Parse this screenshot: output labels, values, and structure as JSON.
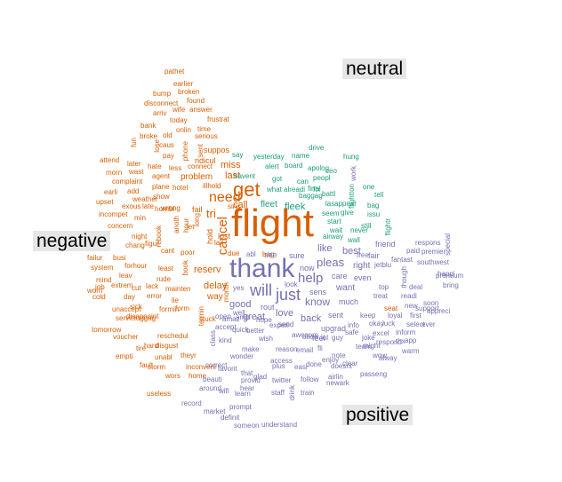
{
  "labels": {
    "neutral": "neutral",
    "negative": "negative",
    "positive": "positive"
  },
  "colors": {
    "negative": "#d95f02",
    "neutral": "#1b9e77",
    "positive": "#7570b3"
  },
  "words": [
    {
      "t": "flight",
      "g": "negative"
    },
    {
      "t": "thank",
      "g": "positive"
    },
    {
      "t": "get",
      "g": "negative"
    },
    {
      "t": "will",
      "g": "positive"
    },
    {
      "t": "just",
      "g": "positive"
    },
    {
      "t": "need",
      "g": "negative"
    },
    {
      "t": "help",
      "g": "positive"
    },
    {
      "t": "pleas",
      "g": "positive"
    },
    {
      "t": "cancel",
      "g": "negative"
    },
    {
      "t": "tri",
      "g": "negative"
    },
    {
      "t": "call",
      "g": "negative"
    },
    {
      "t": "fleet",
      "g": "neutral"
    },
    {
      "t": "fleek",
      "g": "neutral"
    },
    {
      "t": "miss",
      "g": "negative"
    },
    {
      "t": "last",
      "g": "negative"
    },
    {
      "t": "problem",
      "g": "negative"
    },
    {
      "t": "reserv",
      "g": "negative"
    },
    {
      "t": "delay",
      "g": "negative"
    },
    {
      "t": "good",
      "g": "positive"
    },
    {
      "t": "great",
      "g": "positive"
    },
    {
      "t": "love",
      "g": "positive"
    },
    {
      "t": "back",
      "g": "positive"
    },
    {
      "t": "know",
      "g": "positive"
    },
    {
      "t": "like",
      "g": "positive"
    },
    {
      "t": "best",
      "g": "positive"
    },
    {
      "t": "right",
      "g": "positive"
    },
    {
      "t": "want",
      "g": "positive"
    },
    {
      "t": "way",
      "g": "negative"
    },
    {
      "t": "fail",
      "g": "negative"
    },
    {
      "t": "lost",
      "g": "negative"
    },
    {
      "t": "hold",
      "g": "negative"
    },
    {
      "t": "sinc",
      "g": "negative"
    },
    {
      "t": "illhold",
      "g": "negative"
    },
    {
      "t": "suppos",
      "g": "negative"
    },
    {
      "t": "ridicul",
      "g": "negative"
    },
    {
      "t": "connect",
      "g": "negative"
    },
    {
      "t": "serious",
      "g": "negative"
    },
    {
      "t": "frustrat",
      "g": "negative"
    },
    {
      "t": "time",
      "g": "negative"
    },
    {
      "t": "onlin",
      "g": "negative"
    },
    {
      "t": "today",
      "g": "negative"
    },
    {
      "t": "answer",
      "g": "negative"
    },
    {
      "t": "wife",
      "g": "negative"
    },
    {
      "t": "arriv",
      "g": "negative"
    },
    {
      "t": "found",
      "g": "negative"
    },
    {
      "t": "disconnect",
      "g": "negative"
    },
    {
      "t": "broken",
      "g": "negative"
    },
    {
      "t": "bump",
      "g": "negative"
    },
    {
      "t": "earlier",
      "g": "negative"
    },
    {
      "t": "pathet",
      "g": "negative"
    },
    {
      "t": "bank",
      "g": "negative"
    },
    {
      "t": "old",
      "g": "negative"
    },
    {
      "t": "broke",
      "g": "negative"
    },
    {
      "t": "fun",
      "g": "negative"
    },
    {
      "t": "lose",
      "g": "negative"
    },
    {
      "t": "caus",
      "g": "negative"
    },
    {
      "t": "pay",
      "g": "negative"
    },
    {
      "t": "phone",
      "g": "negative"
    },
    {
      "t": "sent",
      "g": "negative"
    },
    {
      "t": "later",
      "g": "negative"
    },
    {
      "t": "hate",
      "g": "negative"
    },
    {
      "t": "less",
      "g": "negative"
    },
    {
      "t": "morn",
      "g": "negative"
    },
    {
      "t": "wast",
      "g": "negative"
    },
    {
      "t": "agent",
      "g": "negative"
    },
    {
      "t": "complaint",
      "g": "negative"
    },
    {
      "t": "plane",
      "g": "negative"
    },
    {
      "t": "hotel",
      "g": "negative"
    },
    {
      "t": "earli",
      "g": "negative"
    },
    {
      "t": "add",
      "g": "negative"
    },
    {
      "t": "show",
      "g": "negative"
    },
    {
      "t": "upset",
      "g": "negative"
    },
    {
      "t": "weather",
      "g": "negative"
    },
    {
      "t": "exous",
      "g": "negative"
    },
    {
      "t": "late",
      "g": "negative"
    },
    {
      "t": "wrong",
      "g": "negative"
    },
    {
      "t": "incompet",
      "g": "negative"
    },
    {
      "t": "min",
      "g": "negative"
    },
    {
      "t": "anoth",
      "g": "negative"
    },
    {
      "t": "hour",
      "g": "negative"
    },
    {
      "t": "let",
      "g": "negative"
    },
    {
      "t": "long",
      "g": "negative"
    },
    {
      "t": "concern",
      "g": "negative"
    },
    {
      "t": "night",
      "g": "negative"
    },
    {
      "t": "rebook",
      "g": "negative"
    },
    {
      "t": "chang",
      "g": "negative"
    },
    {
      "t": "cant",
      "g": "negative"
    },
    {
      "t": "poor",
      "g": "negative"
    },
    {
      "t": "lax",
      "g": "negative"
    },
    {
      "t": "due",
      "g": "negative"
    },
    {
      "t": "failur",
      "g": "negative"
    },
    {
      "t": "busi",
      "g": "negative"
    },
    {
      "t": "forhour",
      "g": "negative"
    },
    {
      "t": "figur",
      "g": "negative"
    },
    {
      "t": "least",
      "g": "negative"
    },
    {
      "t": "system",
      "g": "negative"
    },
    {
      "t": "leav",
      "g": "negative"
    },
    {
      "t": "rude",
      "g": "negative"
    },
    {
      "t": "mind",
      "g": "negative"
    },
    {
      "t": "cut",
      "g": "negative"
    },
    {
      "t": "lack",
      "g": "negative"
    },
    {
      "t": "job",
      "g": "negative"
    },
    {
      "t": "mainten",
      "g": "negative"
    },
    {
      "t": "worri",
      "g": "negative"
    },
    {
      "t": "cold",
      "g": "negative"
    },
    {
      "t": "extrem",
      "g": "negative"
    },
    {
      "t": "day",
      "g": "negative"
    },
    {
      "t": "error",
      "g": "negative"
    },
    {
      "t": "lie",
      "g": "negative"
    },
    {
      "t": "sick",
      "g": "negative"
    },
    {
      "t": "unaccept",
      "g": "negative"
    },
    {
      "t": "disappoint",
      "g": "negative"
    },
    {
      "t": "form",
      "g": "negative"
    },
    {
      "t": "servic",
      "g": "negative"
    },
    {
      "t": "luggag",
      "g": "negative"
    },
    {
      "t": "formin",
      "g": "negative"
    },
    {
      "t": "tomorrow",
      "g": "negative"
    },
    {
      "t": "reschedul",
      "g": "negative"
    },
    {
      "t": "voucher",
      "g": "negative"
    },
    {
      "t": "tire",
      "g": "negative"
    },
    {
      "t": "hard",
      "g": "negative"
    },
    {
      "t": "disgust",
      "g": "negative"
    },
    {
      "t": "empti",
      "g": "negative"
    },
    {
      "t": "unabl",
      "g": "negative"
    },
    {
      "t": "theyr",
      "g": "negative"
    },
    {
      "t": "fault",
      "g": "negative"
    },
    {
      "t": "storm",
      "g": "negative"
    },
    {
      "t": "inconveni",
      "g": "negative"
    },
    {
      "t": "home",
      "g": "negative"
    },
    {
      "t": "wors",
      "g": "negative"
    },
    {
      "t": "useless",
      "g": "negative"
    },
    {
      "t": "stuck",
      "g": "negative"
    },
    {
      "t": "bag",
      "g": "negative"
    },
    {
      "t": "seat",
      "g": "negative"
    },
    {
      "t": "attend",
      "g": "negative"
    },
    {
      "t": "horribl",
      "g": "negative"
    },
    {
      "t": "book",
      "g": "negative"
    },
    {
      "t": "termin",
      "g": "negative"
    },
    {
      "t": "month",
      "g": "negative"
    },
    {
      "t": "drive",
      "g": "neutral"
    },
    {
      "t": "hung",
      "g": "neutral"
    },
    {
      "t": "say",
      "g": "neutral"
    },
    {
      "t": "yesterday",
      "g": "neutral"
    },
    {
      "t": "name",
      "g": "neutral"
    },
    {
      "t": "alert",
      "g": "neutral"
    },
    {
      "t": "board",
      "g": "neutral"
    },
    {
      "t": "apolog",
      "g": "neutral"
    },
    {
      "t": "ceo",
      "g": "neutral"
    },
    {
      "t": "havent",
      "g": "neutral"
    },
    {
      "t": "got",
      "g": "neutral"
    },
    {
      "t": "can",
      "g": "neutral"
    },
    {
      "t": "peopl",
      "g": "neutral"
    },
    {
      "t": "final",
      "g": "neutral"
    },
    {
      "t": "what",
      "g": "neutral"
    },
    {
      "t": "alreadi",
      "g": "neutral"
    },
    {
      "t": "fix",
      "g": "neutral"
    },
    {
      "t": "one",
      "g": "neutral"
    },
    {
      "t": "baggag",
      "g": "neutral"
    },
    {
      "t": "battl",
      "g": "neutral"
    },
    {
      "t": "tell",
      "g": "neutral"
    },
    {
      "t": "las",
      "g": "neutral"
    },
    {
      "t": "appear",
      "g": "neutral"
    },
    {
      "t": "bag",
      "g": "neutral"
    },
    {
      "t": "seem",
      "g": "neutral"
    },
    {
      "t": "give",
      "g": "neutral"
    },
    {
      "t": "issu",
      "g": "neutral"
    },
    {
      "t": "start",
      "g": "neutral"
    },
    {
      "t": "wait",
      "g": "neutral"
    },
    {
      "t": "never",
      "g": "neutral"
    },
    {
      "t": "still",
      "g": "neutral"
    },
    {
      "t": "airway",
      "g": "neutral"
    },
    {
      "t": "wall",
      "g": "neutral"
    },
    {
      "t": "flightr",
      "g": "neutral"
    },
    {
      "t": "flightton",
      "g": "neutral"
    },
    {
      "t": "work",
      "g": "positive"
    },
    {
      "t": "friend",
      "g": "positive"
    },
    {
      "t": "fair",
      "g": "positive"
    },
    {
      "t": "free",
      "g": "positive"
    },
    {
      "t": "even",
      "g": "positive"
    },
    {
      "t": "care",
      "g": "positive"
    },
    {
      "t": "much",
      "g": "positive"
    },
    {
      "t": "sure",
      "g": "positive"
    },
    {
      "t": "see",
      "g": "positive"
    },
    {
      "t": "now",
      "g": "positive"
    },
    {
      "t": "abl",
      "g": "positive"
    },
    {
      "t": "rout",
      "g": "positive"
    },
    {
      "t": "look",
      "g": "positive"
    },
    {
      "t": "sens",
      "g": "positive"
    },
    {
      "t": "respons",
      "g": "positive"
    },
    {
      "t": "paid",
      "g": "positive"
    },
    {
      "t": "premier",
      "g": "positive"
    },
    {
      "t": "southwest",
      "g": "positive"
    },
    {
      "t": "though",
      "g": "positive"
    },
    {
      "t": "special",
      "g": "positive"
    },
    {
      "t": "premium",
      "g": "positive"
    },
    {
      "t": "happi",
      "g": "positive"
    },
    {
      "t": "jetblu",
      "g": "positive"
    },
    {
      "t": "fantast",
      "g": "positive"
    },
    {
      "t": "deal",
      "g": "positive"
    },
    {
      "t": "bring",
      "g": "positive"
    },
    {
      "t": "readi",
      "g": "positive"
    },
    {
      "t": "treat",
      "g": "positive"
    },
    {
      "t": "top",
      "g": "positive"
    },
    {
      "t": "new",
      "g": "positive"
    },
    {
      "t": "support",
      "g": "positive"
    },
    {
      "t": "soon",
      "g": "positive"
    },
    {
      "t": "appreci",
      "g": "positive"
    },
    {
      "t": "sent",
      "g": "positive"
    },
    {
      "t": "keep",
      "g": "positive"
    },
    {
      "t": "loyal",
      "g": "positive"
    },
    {
      "t": "first",
      "g": "positive"
    },
    {
      "t": "okay",
      "g": "positive"
    },
    {
      "t": "luck",
      "g": "positive"
    },
    {
      "t": "select",
      "g": "positive"
    },
    {
      "t": "ever",
      "g": "positive"
    },
    {
      "t": "info",
      "g": "positive"
    },
    {
      "t": "upgrad",
      "g": "positive"
    },
    {
      "t": "feel",
      "g": "positive"
    },
    {
      "t": "excel",
      "g": "positive"
    },
    {
      "t": "inform",
      "g": "positive"
    },
    {
      "t": "safe",
      "g": "positive"
    },
    {
      "t": "lol",
      "g": "positive"
    },
    {
      "t": "guy",
      "g": "positive"
    },
    {
      "t": "joke",
      "g": "positive"
    },
    {
      "t": "might",
      "g": "positive"
    },
    {
      "t": "app",
      "g": "positive"
    },
    {
      "t": "warm",
      "g": "positive"
    },
    {
      "t": "wow",
      "g": "positive"
    },
    {
      "t": "alway",
      "g": "positive"
    },
    {
      "t": "thx",
      "g": "positive"
    },
    {
      "t": "team",
      "g": "positive"
    },
    {
      "t": "respond",
      "g": "positive"
    },
    {
      "t": "note",
      "g": "positive"
    },
    {
      "t": "done",
      "g": "positive"
    },
    {
      "t": "email",
      "g": "positive"
    },
    {
      "t": "clear",
      "g": "positive"
    },
    {
      "t": "enjoy",
      "g": "positive"
    },
    {
      "t": "airlin",
      "g": "positive"
    },
    {
      "t": "passeng",
      "g": "positive"
    },
    {
      "t": "doesnt",
      "g": "positive"
    },
    {
      "t": "easi",
      "g": "positive"
    },
    {
      "t": "access",
      "g": "positive"
    },
    {
      "t": "follow",
      "g": "positive"
    },
    {
      "t": "glad",
      "g": "positive"
    },
    {
      "t": "plus",
      "g": "positive"
    },
    {
      "t": "train",
      "g": "positive"
    },
    {
      "t": "newark",
      "g": "positive"
    },
    {
      "t": "drink",
      "g": "positive"
    },
    {
      "t": "twitter",
      "g": "positive"
    },
    {
      "t": "staff",
      "g": "positive"
    },
    {
      "t": "understand",
      "g": "positive"
    },
    {
      "t": "someon",
      "g": "positive"
    },
    {
      "t": "definit",
      "g": "positive"
    },
    {
      "t": "prompt",
      "g": "positive"
    },
    {
      "t": "market",
      "g": "positive"
    },
    {
      "t": "record",
      "g": "positive"
    },
    {
      "t": "around",
      "g": "positive"
    },
    {
      "t": "wifi",
      "g": "positive"
    },
    {
      "t": "beauti",
      "g": "positive"
    },
    {
      "t": "learn",
      "g": "positive"
    },
    {
      "t": "hear",
      "g": "positive"
    },
    {
      "t": "that",
      "g": "positive"
    },
    {
      "t": "provid",
      "g": "positive"
    },
    {
      "t": "favorit",
      "g": "positive"
    },
    {
      "t": "correct",
      "g": "positive"
    },
    {
      "t": "wonder",
      "g": "positive"
    },
    {
      "t": "make",
      "g": "positive"
    },
    {
      "t": "reason",
      "g": "positive"
    },
    {
      "t": "wish",
      "g": "positive"
    },
    {
      "t": "kind",
      "g": "positive"
    },
    {
      "t": "accept",
      "g": "positive"
    },
    {
      "t": "quick",
      "g": "positive"
    },
    {
      "t": "open",
      "g": "positive"
    },
    {
      "t": "better",
      "g": "positive"
    },
    {
      "t": "hope",
      "g": "positive"
    },
    {
      "t": "experi",
      "g": "positive"
    },
    {
      "t": "awesom",
      "g": "positive"
    },
    {
      "t": "send",
      "g": "positive"
    },
    {
      "t": "amp",
      "g": "positive"
    },
    {
      "t": "amaz",
      "g": "positive"
    },
    {
      "t": "yes",
      "g": "positive"
    },
    {
      "t": "well",
      "g": "positive"
    },
    {
      "t": "class",
      "g": "positive"
    },
    {
      "t": "allow",
      "g": "positive"
    },
    {
      "t": "fli",
      "g": "positive"
    },
    {
      "t": "hrs",
      "g": "positive"
    },
    {
      "t": "ive",
      "g": "positive"
    },
    {
      "t": "told",
      "g": "positive"
    },
    {
      "t": "accou",
      "g": "positive"
    },
    {
      "t": "let",
      "g": "positive"
    },
    {
      "t": "sent",
      "g": "positive"
    }
  ]
}
